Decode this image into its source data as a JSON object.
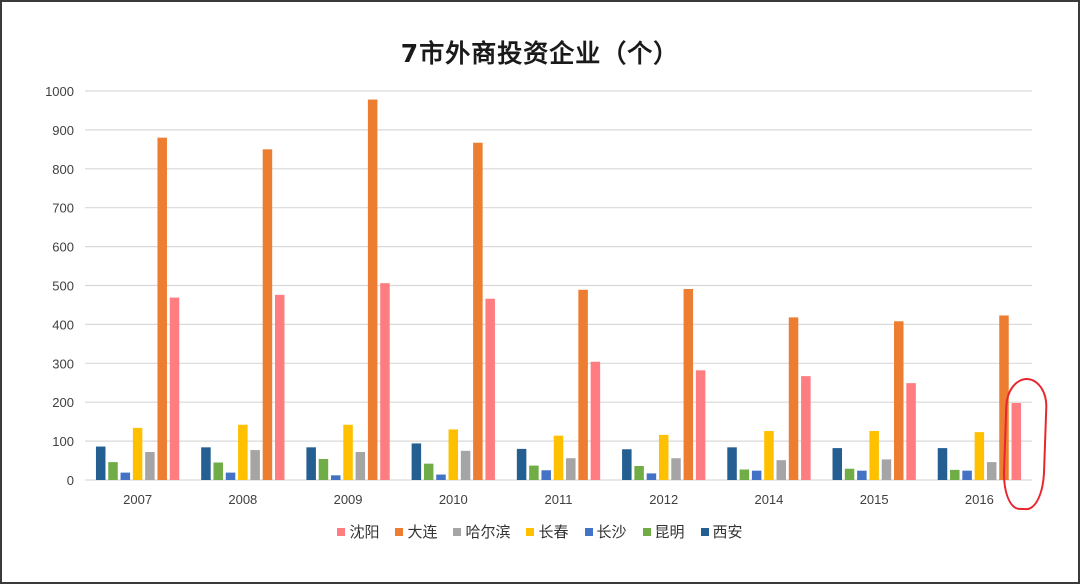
{
  "chart_data": {
    "type": "bar",
    "title": "7市外商投资企业（个）",
    "xlabel": "",
    "ylabel": "",
    "ylim": [
      0,
      1000
    ],
    "yticks": [
      0,
      100,
      200,
      300,
      400,
      500,
      600,
      700,
      800,
      900,
      1000
    ],
    "grid": true,
    "legend_position": "bottom",
    "categories": [
      "2007",
      "2008",
      "2009",
      "2010",
      "2011",
      "2012",
      "2014",
      "2015",
      "2016"
    ],
    "series": [
      {
        "name": "西安",
        "color": "#255e91",
        "values": [
          86,
          84,
          84,
          94,
          80,
          79,
          84,
          82,
          82
        ]
      },
      {
        "name": "昆明",
        "color": "#70ad47",
        "values": [
          46,
          45,
          54,
          42,
          37,
          36,
          27,
          29,
          26
        ]
      },
      {
        "name": "长沙",
        "color": "#4472c4",
        "values": [
          19,
          19,
          12,
          14,
          25,
          17,
          24,
          24,
          24
        ]
      },
      {
        "name": "长春",
        "color": "#ffc000",
        "values": [
          134,
          142,
          142,
          130,
          114,
          116,
          126,
          126,
          123
        ]
      },
      {
        "name": "哈尔滨",
        "color": "#a5a5a5",
        "values": [
          72,
          77,
          72,
          75,
          56,
          56,
          51,
          53,
          46
        ]
      },
      {
        "name": "大连",
        "color": "#ed7d31",
        "values": [
          880,
          850,
          978,
          867,
          489,
          491,
          418,
          408,
          423
        ]
      },
      {
        "name": "沈阳",
        "color": "#ff7c80",
        "values": [
          469,
          476,
          506,
          466,
          304,
          282,
          267,
          249,
          198
        ]
      }
    ],
    "legend_order": [
      "沈阳",
      "大连",
      "哈尔滨",
      "长春",
      "长沙",
      "昆明",
      "西安"
    ],
    "annotations": [
      {
        "type": "hand-drawn-circle",
        "color": "#e8262f",
        "target": "2016 沈阳"
      }
    ]
  }
}
